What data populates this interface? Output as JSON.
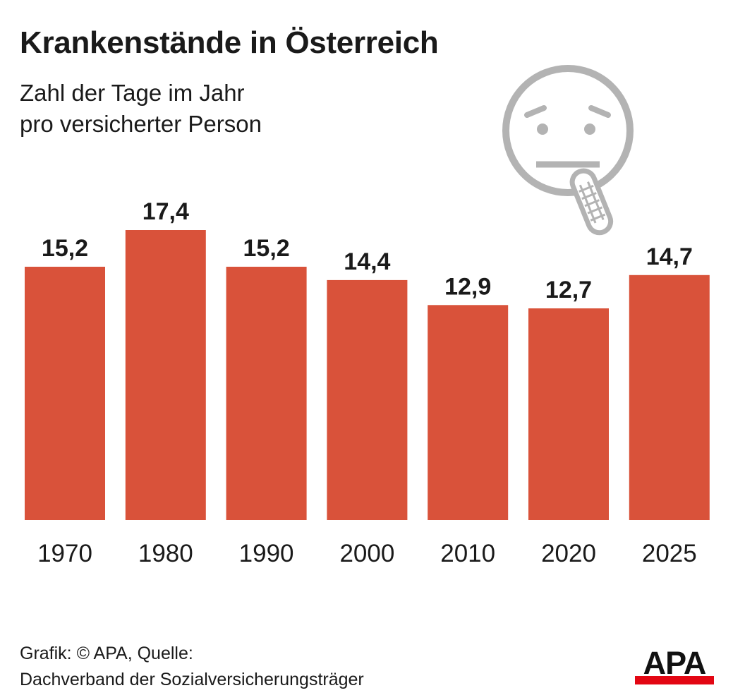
{
  "chart_data": {
    "type": "bar",
    "title": "Krankenstände in Österreich",
    "subtitle": [
      "Zahl der Tage im Jahr",
      "pro versicherter Person"
    ],
    "categories": [
      "1970",
      "1980",
      "1990",
      "2000",
      "2010",
      "2020",
      "2025"
    ],
    "values": [
      15.2,
      17.4,
      15.2,
      14.4,
      12.9,
      12.7,
      14.7
    ],
    "value_labels": [
      "15,2",
      "17,4",
      "15,2",
      "14,4",
      "12,9",
      "12,7",
      "14,7"
    ],
    "xlabel": "",
    "ylabel": "",
    "ylim": [
      0,
      17.4
    ],
    "grid": false,
    "bar_color": "#d9523a"
  },
  "source": {
    "line1": "Grafik: © APA, Quelle:",
    "line2": "Dachverband der Sozialversicherungsträger"
  },
  "logo": {
    "text": "APA",
    "accent": "#e30613"
  },
  "icon": {
    "name": "sick-face-thermometer-icon",
    "color": "#b3b3b3"
  }
}
